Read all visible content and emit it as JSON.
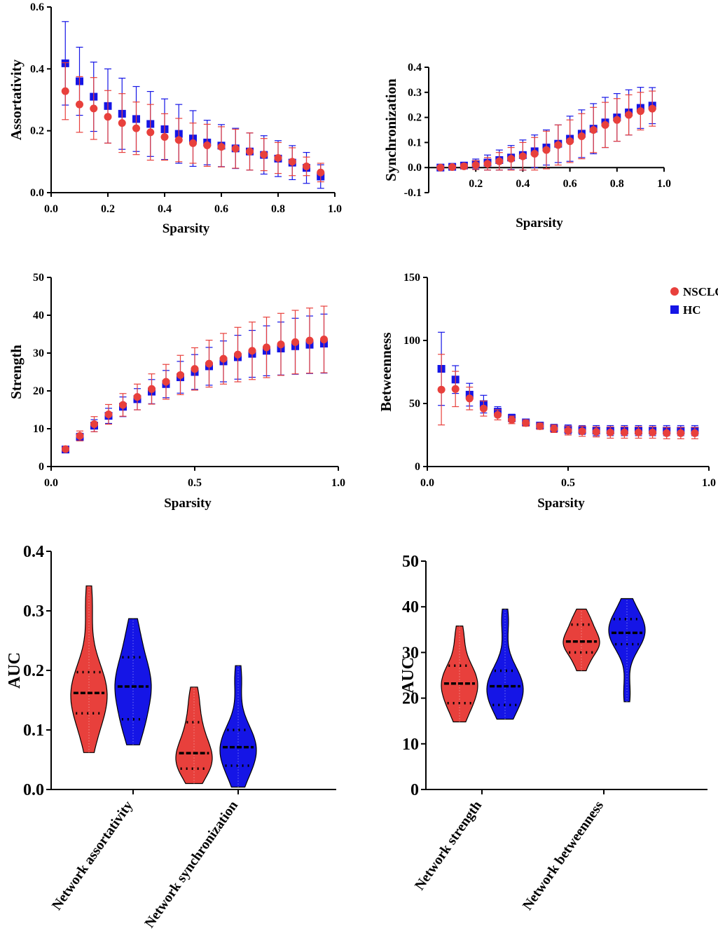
{
  "colors": {
    "nsclc": "#e8403c",
    "hc": "#1515e6",
    "axis": "#000000"
  },
  "legend": [
    {
      "key": "nsclc",
      "label": "NSCLC",
      "marker": "circle"
    },
    {
      "key": "hc",
      "label": "HC",
      "marker": "square"
    }
  ],
  "chart_data": [
    {
      "id": "assortativity",
      "type": "scatter",
      "title": "",
      "xlabel": "Sparsity",
      "ylabel": "Assortativity",
      "xlim": [
        0,
        1
      ],
      "ylim": [
        0,
        0.6
      ],
      "xticks": [
        "0.0",
        "0.2",
        "0.4",
        "0.6",
        "0.8",
        "1.0"
      ],
      "yticks": [
        "0.0",
        "0.2",
        "0.4",
        "0.6"
      ],
      "xtick_values": [
        0,
        0.2,
        0.4,
        0.6,
        0.8,
        1.0
      ],
      "ytick_values": [
        0,
        0.2,
        0.4,
        0.6
      ],
      "x": [
        0.05,
        0.1,
        0.15,
        0.2,
        0.25,
        0.3,
        0.35,
        0.4,
        0.45,
        0.5,
        0.55,
        0.6,
        0.65,
        0.7,
        0.75,
        0.8,
        0.85,
        0.9,
        0.95
      ],
      "series": [
        {
          "name": "NSCLC",
          "values": [
            0.328,
            0.285,
            0.272,
            0.245,
            0.225,
            0.208,
            0.195,
            0.18,
            0.17,
            0.16,
            0.153,
            0.148,
            0.142,
            0.133,
            0.123,
            0.112,
            0.1,
            0.085,
            0.065
          ],
          "err": [
            0.092,
            0.09,
            0.1,
            0.085,
            0.095,
            0.085,
            0.09,
            0.075,
            0.07,
            0.065,
            0.068,
            0.065,
            0.063,
            0.06,
            0.052,
            0.05,
            0.045,
            0.03,
            0.03
          ]
        },
        {
          "name": "HC",
          "values": [
            0.418,
            0.36,
            0.31,
            0.28,
            0.255,
            0.238,
            0.222,
            0.205,
            0.19,
            0.175,
            0.162,
            0.152,
            0.143,
            0.133,
            0.122,
            0.11,
            0.097,
            0.08,
            0.052
          ],
          "err": [
            0.135,
            0.11,
            0.112,
            0.12,
            0.115,
            0.105,
            0.105,
            0.098,
            0.095,
            0.09,
            0.072,
            0.068,
            0.065,
            0.06,
            0.062,
            0.058,
            0.055,
            0.05,
            0.038
          ]
        }
      ]
    },
    {
      "id": "synchronization",
      "type": "scatter",
      "title": "",
      "xlabel": "Sparsity",
      "ylabel": "Synchronization",
      "xlim": [
        0,
        1
      ],
      "ylim": [
        -0.1,
        0.4
      ],
      "xticks": [
        "0.2",
        "0.4",
        "0.6",
        "0.8",
        "1.0"
      ],
      "yticks": [
        "-0.1",
        "0.0",
        "0.1",
        "0.2",
        "0.3",
        "0.4"
      ],
      "xtick_values": [
        0.2,
        0.4,
        0.6,
        0.8,
        1.0
      ],
      "ytick_values": [
        -0.1,
        0,
        0.1,
        0.2,
        0.3,
        0.4
      ],
      "x": [
        0.05,
        0.1,
        0.15,
        0.2,
        0.25,
        0.3,
        0.35,
        0.4,
        0.45,
        0.5,
        0.55,
        0.6,
        0.65,
        0.7,
        0.75,
        0.8,
        0.85,
        0.9,
        0.95
      ],
      "series": [
        {
          "name": "NSCLC",
          "values": [
            0.0,
            0.002,
            0.005,
            0.01,
            0.015,
            0.025,
            0.035,
            0.045,
            0.055,
            0.07,
            0.09,
            0.105,
            0.125,
            0.15,
            0.17,
            0.19,
            0.21,
            0.225,
            0.235
          ],
          "err": [
            0.003,
            0.005,
            0.01,
            0.018,
            0.025,
            0.035,
            0.045,
            0.055,
            0.065,
            0.075,
            0.08,
            0.085,
            0.09,
            0.09,
            0.09,
            0.085,
            0.08,
            0.075,
            0.07
          ]
        },
        {
          "name": "HC",
          "values": [
            0.0,
            0.003,
            0.008,
            0.014,
            0.02,
            0.03,
            0.04,
            0.05,
            0.065,
            0.08,
            0.095,
            0.115,
            0.135,
            0.155,
            0.18,
            0.2,
            0.22,
            0.238,
            0.247
          ],
          "err": [
            0.003,
            0.006,
            0.012,
            0.02,
            0.03,
            0.04,
            0.048,
            0.06,
            0.065,
            0.07,
            0.075,
            0.09,
            0.095,
            0.1,
            0.1,
            0.095,
            0.09,
            0.082,
            0.072
          ]
        }
      ]
    },
    {
      "id": "strength",
      "type": "scatter",
      "title": "",
      "xlabel": "Sparsity",
      "ylabel": "Strength",
      "xlim": [
        0,
        1
      ],
      "ylim": [
        0,
        50
      ],
      "xticks": [
        "0.0",
        "0.5",
        "1.0"
      ],
      "yticks": [
        "0",
        "10",
        "20",
        "30",
        "40",
        "50"
      ],
      "xtick_values": [
        0,
        0.5,
        1.0
      ],
      "ytick_values": [
        0,
        10,
        20,
        30,
        40,
        50
      ],
      "x": [
        0.05,
        0.1,
        0.15,
        0.2,
        0.25,
        0.3,
        0.35,
        0.4,
        0.45,
        0.5,
        0.55,
        0.6,
        0.65,
        0.7,
        0.75,
        0.8,
        0.85,
        0.9,
        0.95
      ],
      "series": [
        {
          "name": "NSCLC",
          "values": [
            4.6,
            8.1,
            11.2,
            13.8,
            16.3,
            18.4,
            20.5,
            22.4,
            24.2,
            25.8,
            27.2,
            28.5,
            29.6,
            30.6,
            31.5,
            32.3,
            32.9,
            33.3,
            33.6
          ],
          "err": [
            0.5,
            1.3,
            2.0,
            2.6,
            3.0,
            3.4,
            4.0,
            4.6,
            5.2,
            5.6,
            6.2,
            6.7,
            7.2,
            7.6,
            8.0,
            8.2,
            8.4,
            8.6,
            8.8
          ]
        },
        {
          "name": "HC",
          "values": [
            4.5,
            7.8,
            10.8,
            13.4,
            15.8,
            17.8,
            19.8,
            21.8,
            23.6,
            25.0,
            26.5,
            27.8,
            28.9,
            29.8,
            30.6,
            31.2,
            31.8,
            32.2,
            32.5
          ],
          "err": [
            0.4,
            1.0,
            1.6,
            2.0,
            2.6,
            2.8,
            3.2,
            3.6,
            4.2,
            4.6,
            5.0,
            5.4,
            5.8,
            6.2,
            6.6,
            7.0,
            7.4,
            7.6,
            7.8
          ]
        }
      ]
    },
    {
      "id": "betweenness",
      "type": "scatter",
      "title": "",
      "xlabel": "Sparsity",
      "ylabel": "Betweenness",
      "xlim": [
        0,
        1
      ],
      "ylim": [
        0,
        150
      ],
      "xticks": [
        "0.0",
        "0.5",
        "1.0"
      ],
      "yticks": [
        "0",
        "50",
        "100",
        "150"
      ],
      "xtick_values": [
        0,
        0.5,
        1.0
      ],
      "ytick_values": [
        0,
        50,
        100,
        150
      ],
      "legend": "top-right",
      "x": [
        0.05,
        0.1,
        0.15,
        0.2,
        0.25,
        0.3,
        0.35,
        0.4,
        0.45,
        0.5,
        0.55,
        0.6,
        0.65,
        0.7,
        0.75,
        0.8,
        0.85,
        0.9,
        0.95
      ],
      "series": [
        {
          "name": "NSCLC",
          "values": [
            61,
            61.5,
            54,
            46,
            41,
            37,
            34.5,
            32,
            30,
            28.5,
            28,
            27.5,
            27,
            27,
            27,
            27,
            26.5,
            26.5,
            26.5
          ],
          "err": [
            28,
            14,
            9,
            6,
            4,
            3,
            2.5,
            2.5,
            3,
            3.5,
            4,
            4,
            4.5,
            4.5,
            4.5,
            4.5,
            4.5,
            4.5,
            4.5
          ]
        },
        {
          "name": "HC",
          "values": [
            77.5,
            69,
            57,
            49.5,
            43.5,
            38.5,
            35,
            32.5,
            30.5,
            29.5,
            29,
            28.5,
            28.5,
            28.5,
            28.5,
            28.5,
            28.5,
            28.5,
            28.5
          ],
          "err": [
            29,
            11,
            9,
            7,
            4,
            3,
            2.5,
            2.5,
            3,
            3.5,
            3.5,
            4,
            4,
            4,
            4,
            4,
            4,
            4,
            4
          ]
        }
      ]
    },
    {
      "id": "auc_assort_sync",
      "type": "violin",
      "ylabel": "AUC",
      "ylim": [
        0,
        0.4
      ],
      "yticks": [
        "0.0",
        "0.1",
        "0.2",
        "0.3",
        "0.4"
      ],
      "ytick_values": [
        0,
        0.1,
        0.2,
        0.3,
        0.4
      ],
      "categories": [
        "Network assortativity",
        "Network synchronization"
      ],
      "groups": [
        {
          "category": "Network assortativity",
          "series": "NSCLC",
          "min": 0.062,
          "max": 0.342,
          "median": 0.162,
          "q1": 0.128,
          "q3": 0.197
        },
        {
          "category": "Network assortativity",
          "series": "HC",
          "min": 0.075,
          "max": 0.287,
          "median": 0.173,
          "q1": 0.118,
          "q3": 0.222
        },
        {
          "category": "Network synchronization",
          "series": "NSCLC",
          "min": 0.01,
          "max": 0.172,
          "median": 0.061,
          "q1": 0.035,
          "q3": 0.113
        },
        {
          "category": "Network synchronization",
          "series": "HC",
          "min": 0.004,
          "max": 0.208,
          "median": 0.071,
          "q1": 0.04,
          "q3": 0.1
        }
      ]
    },
    {
      "id": "auc_strength_betweenness",
      "type": "violin",
      "ylabel": "AUC",
      "ylim": [
        0,
        50
      ],
      "yticks": [
        "0",
        "10",
        "20",
        "30",
        "40",
        "50"
      ],
      "ytick_values": [
        0,
        10,
        20,
        30,
        40,
        50
      ],
      "categories": [
        "Network strength",
        "Network betweenness"
      ],
      "groups": [
        {
          "category": "Network strength",
          "series": "NSCLC",
          "min": 14.8,
          "max": 35.8,
          "median": 23.2,
          "q1": 18.9,
          "q3": 27.1
        },
        {
          "category": "Network strength",
          "series": "HC",
          "min": 15.4,
          "max": 39.5,
          "median": 22.6,
          "q1": 18.5,
          "q3": 26.0
        },
        {
          "category": "Network betweenness",
          "series": "NSCLC",
          "min": 26.0,
          "max": 39.5,
          "median": 32.4,
          "q1": 30.0,
          "q3": 36.1
        },
        {
          "category": "Network betweenness",
          "series": "HC",
          "min": 19.2,
          "max": 41.8,
          "median": 34.3,
          "q1": 31.8,
          "q3": 37.3
        }
      ]
    }
  ]
}
